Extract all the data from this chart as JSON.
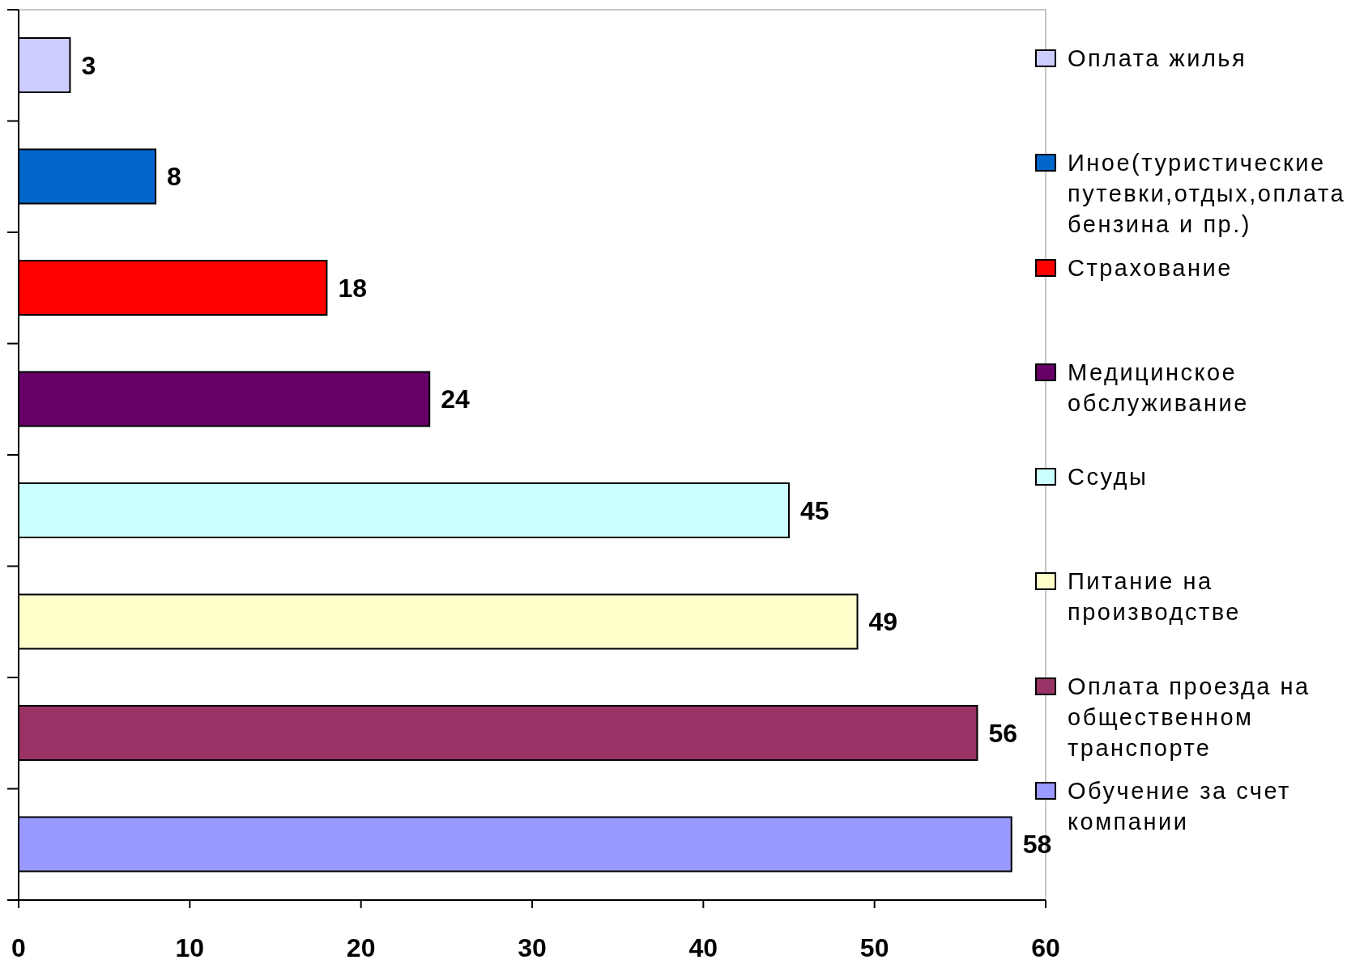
{
  "chart_data": {
    "type": "bar",
    "orientation": "horizontal",
    "categories": [
      null,
      null,
      null,
      null,
      null,
      null,
      null,
      null
    ],
    "series": [
      {
        "name": "Оплата жилья",
        "color": "#ccccff",
        "values": [
          3,
          null,
          null,
          null,
          null,
          null,
          null,
          null
        ]
      },
      {
        "name": "Иное(туристические путевки,отдых,оплата бензина и пр.)",
        "color": "#0066cc",
        "values": [
          null,
          8,
          null,
          null,
          null,
          null,
          null,
          null
        ]
      },
      {
        "name": "Страхование",
        "color": "#ff0000",
        "values": [
          null,
          null,
          18,
          null,
          null,
          null,
          null,
          null
        ]
      },
      {
        "name": "Медицинское обслуживание",
        "color": "#660066",
        "values": [
          null,
          null,
          null,
          24,
          null,
          null,
          null,
          null
        ]
      },
      {
        "name": "Ссуды",
        "color": "#ccffff",
        "values": [
          null,
          null,
          null,
          null,
          45,
          null,
          null,
          null
        ]
      },
      {
        "name": "Питание на производстве",
        "color": "#ffffcc",
        "values": [
          null,
          null,
          null,
          null,
          null,
          49,
          null,
          null
        ]
      },
      {
        "name": "Оплата проезда на общественном транспорте",
        "color": "#993366",
        "values": [
          null,
          null,
          null,
          null,
          null,
          null,
          56,
          null
        ]
      },
      {
        "name": "Обучение за счет компании",
        "color": "#9999ff",
        "values": [
          null,
          null,
          null,
          null,
          null,
          null,
          null,
          58
        ]
      }
    ],
    "xlim": [
      0,
      60
    ],
    "xticks": [
      0,
      10,
      20,
      30,
      40,
      50,
      60
    ],
    "data_labels": true,
    "legend": "right",
    "tick_labels": "x"
  }
}
